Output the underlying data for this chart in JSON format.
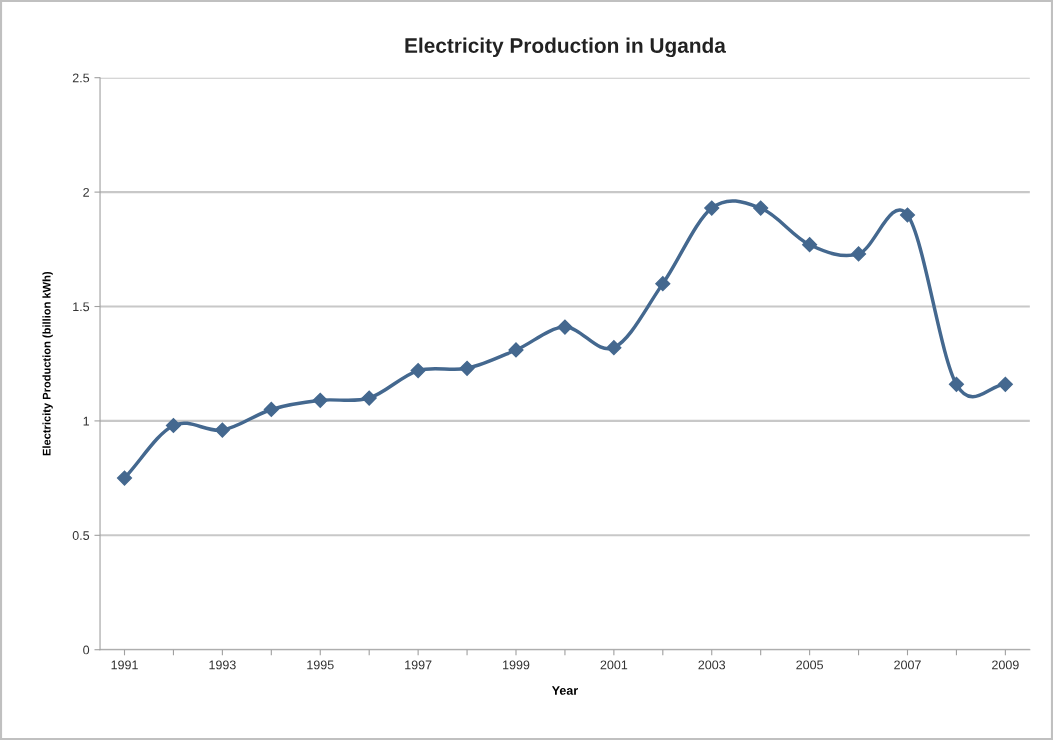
{
  "chart_data": {
    "type": "line",
    "title": "Electricity Production in Uganda",
    "xlabel": "Year",
    "ylabel": "Electricity Production (billion kWh)",
    "categories": [
      "1991",
      null,
      "1993",
      null,
      "1995",
      null,
      "1997",
      null,
      "1999",
      null,
      "2001",
      null,
      "2003",
      null,
      "2005",
      null,
      "2007",
      null,
      "2009"
    ],
    "series": [
      {
        "color": "#44688f",
        "values": [
          0.75,
          0.98,
          0.96,
          1.05,
          1.09,
          1.1,
          1.22,
          1.23,
          1.31,
          1.41,
          1.32,
          1.6,
          1.93,
          1.93,
          1.77,
          1.73,
          1.9,
          1.16,
          1.16
        ]
      }
    ],
    "ylim": [
      0,
      2.5
    ],
    "yticks": [
      0,
      0.5,
      1,
      1.5,
      2,
      2.5
    ],
    "grid": "y",
    "marker": "diamond",
    "line_style": "solid"
  }
}
